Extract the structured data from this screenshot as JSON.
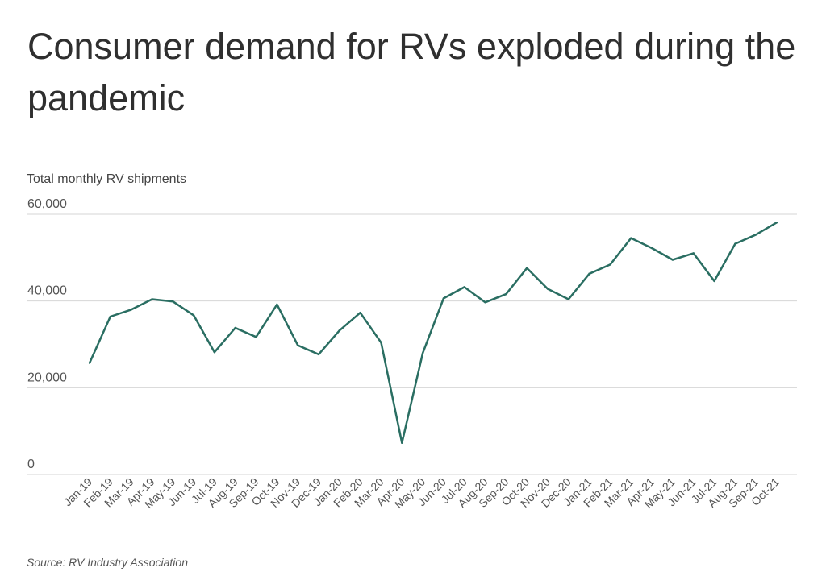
{
  "title": "Consumer demand for RVs exploded during the pandemic",
  "subtitle": "Total monthly RV shipments",
  "source": "Source:  RV Industry Association",
  "colors": {
    "line": "#2a6e62",
    "grid": "#d6d6d6",
    "text": "#555555"
  },
  "chart_data": {
    "type": "line",
    "categories": [
      "Jan-19",
      "Feb-19",
      "Mar-19",
      "Apr-19",
      "May-19",
      "Jun-19",
      "Jul-19",
      "Aug-19",
      "Sep-19",
      "Oct-19",
      "Nov-19",
      "Dec-19",
      "Jan-20",
      "Feb-20",
      "Mar-20",
      "Apr-20",
      "May-20",
      "Jun-20",
      "Jul-20",
      "Aug-20",
      "Sep-20",
      "Oct-20",
      "Nov-20",
      "Dec-20",
      "Jan-21",
      "Feb-21",
      "Mar-21",
      "Apr-21",
      "May-21",
      "Jun-21",
      "Jul-21",
      "Aug-21",
      "Sep-21",
      "Oct-21"
    ],
    "series": [
      {
        "values": [
          25700,
          36400,
          38000,
          40400,
          39900,
          36700,
          28200,
          33800,
          31700,
          39200,
          29800,
          27700,
          33200,
          37300,
          30400,
          7300,
          28000,
          40600,
          43200,
          39700,
          41600,
          47600,
          42800,
          40400,
          46300,
          48400,
          54500,
          52200,
          49500,
          51000,
          44600,
          53200,
          55300,
          58100
        ]
      }
    ],
    "ylim": [
      0,
      60000
    ],
    "yticks": [
      0,
      20000,
      40000,
      60000
    ],
    "ytick_labels": [
      "0",
      "20,000",
      "40,000",
      "60,000"
    ],
    "grid": true,
    "xlabel": "",
    "ylabel": ""
  }
}
